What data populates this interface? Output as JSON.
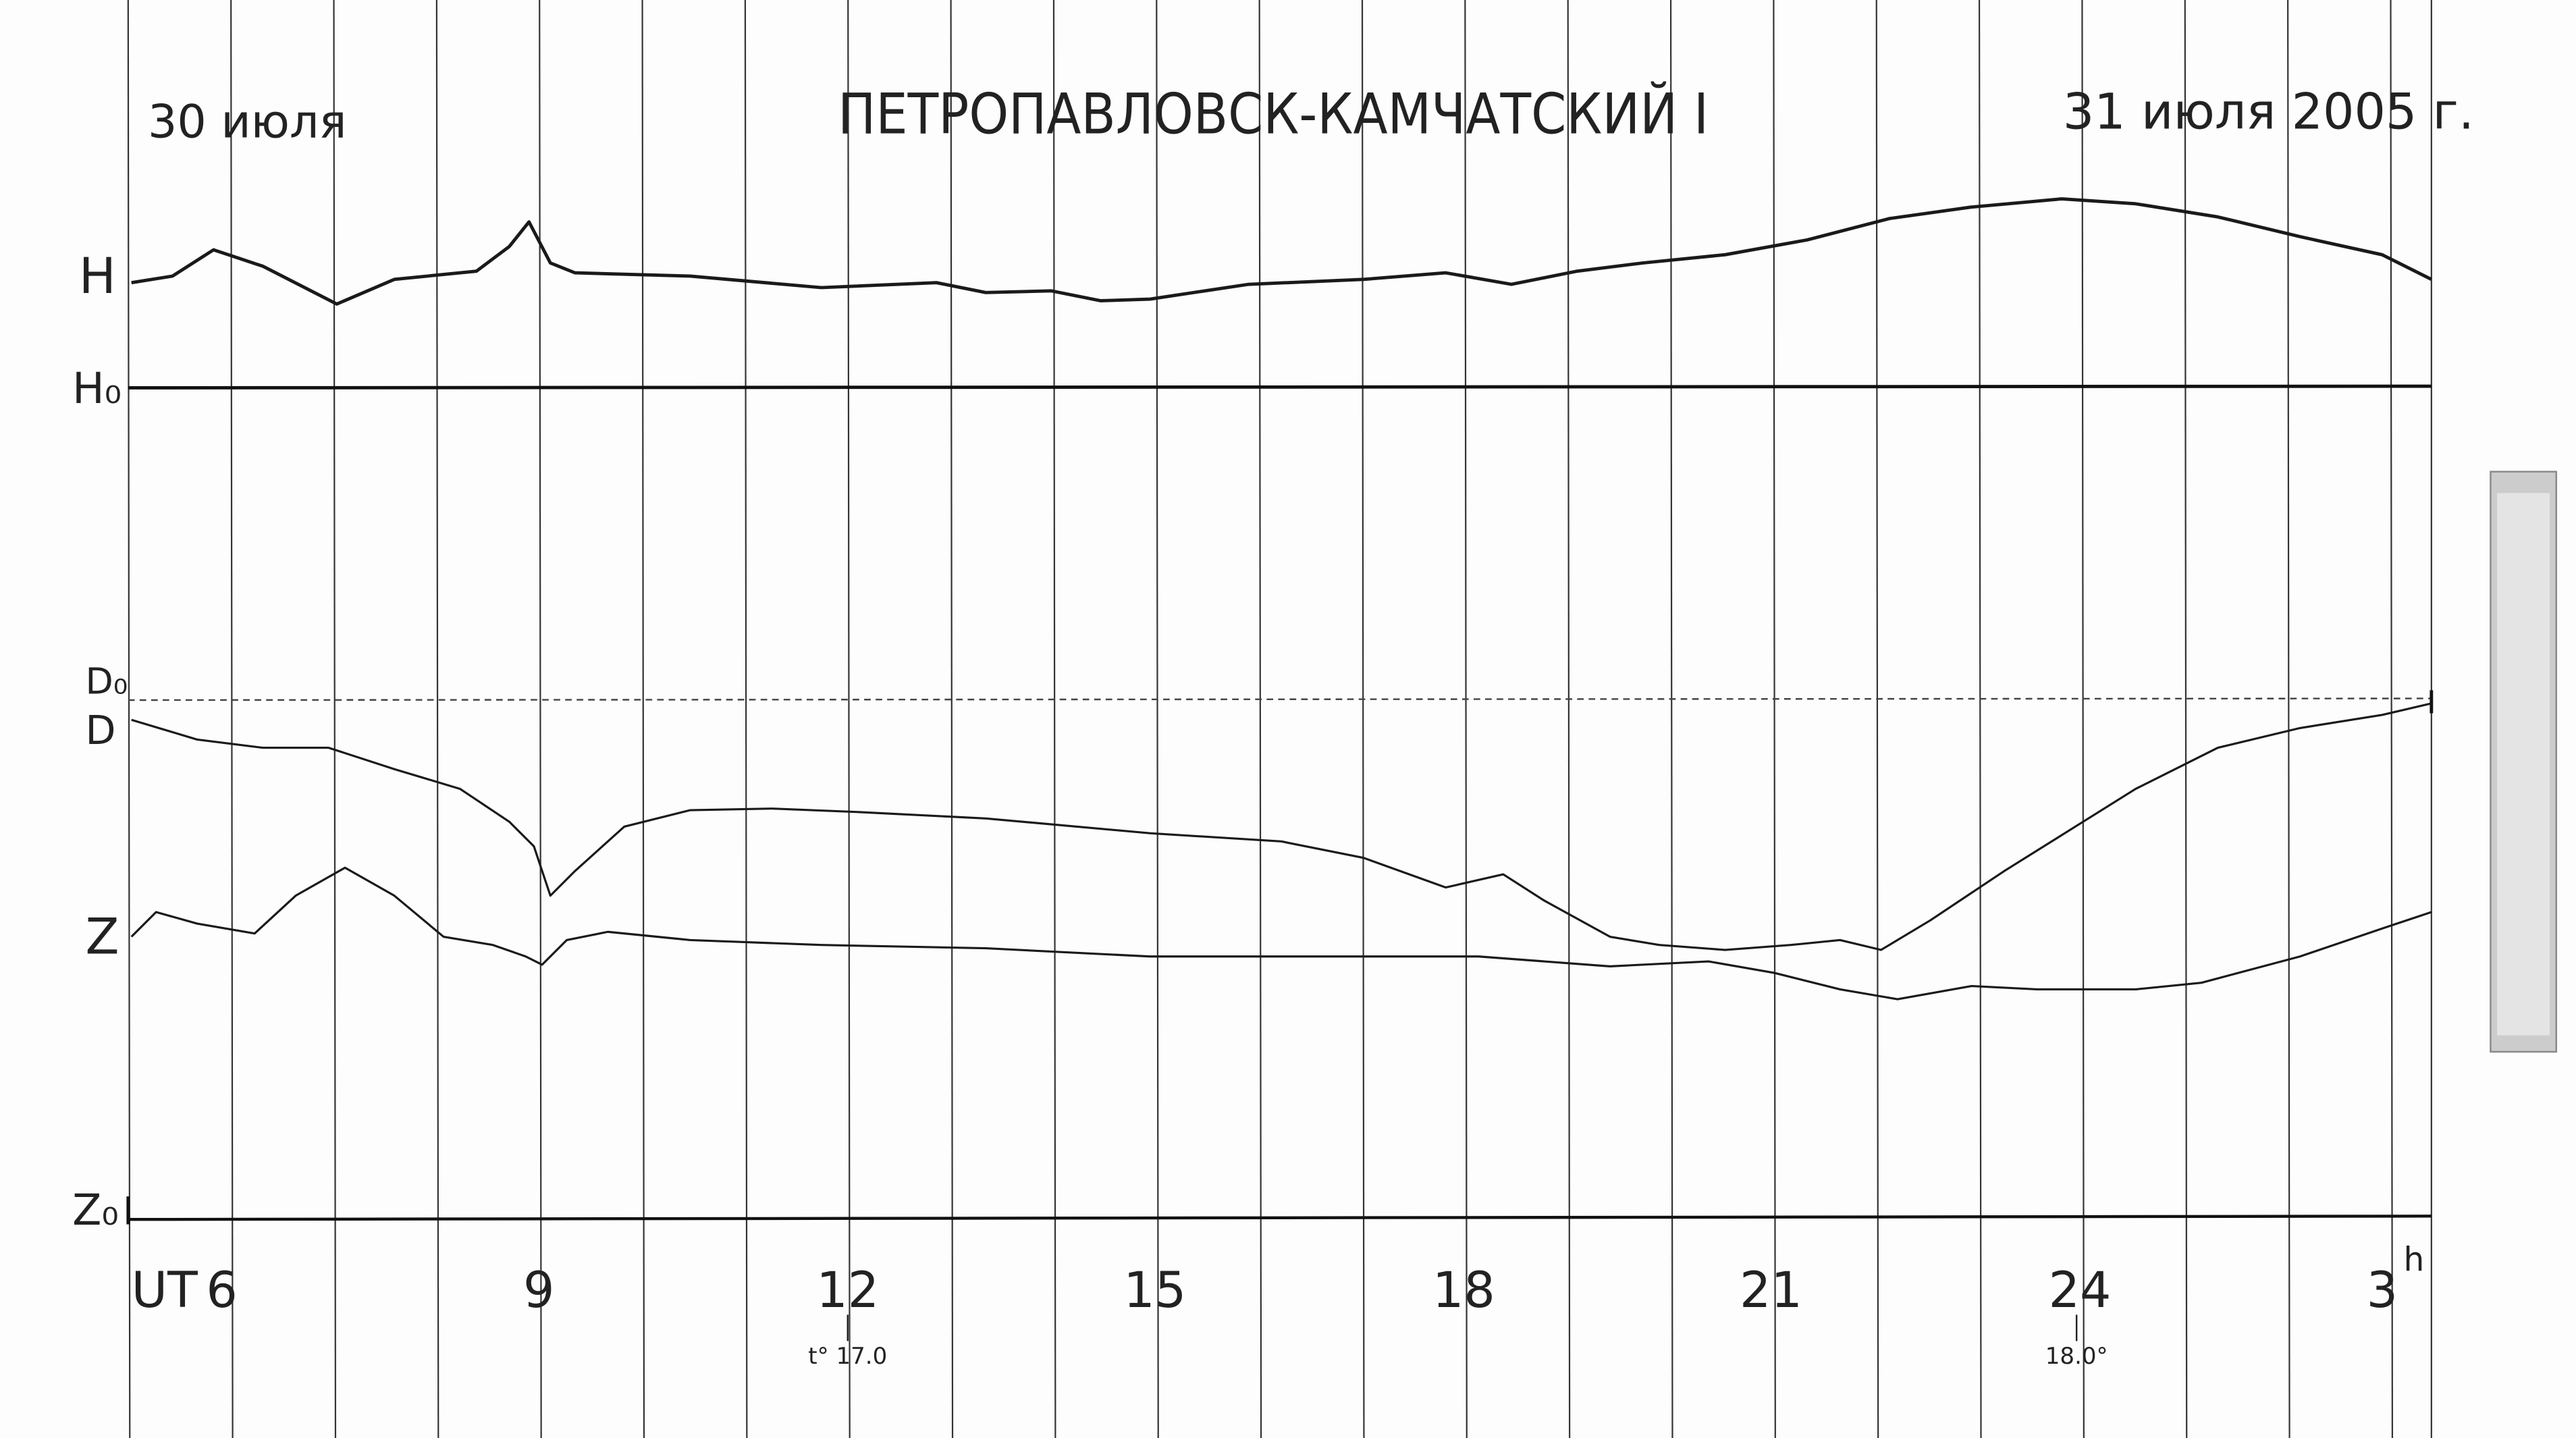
{
  "header": {
    "left_date": "30 июля",
    "title": "ПЕТРОПАВЛОВСК-КАМЧАТСКИЙ I",
    "right_date": "31 июля 2005 г."
  },
  "labels": {
    "h": "H",
    "h0": "H₀",
    "d0": "D₀",
    "d": "D",
    "z": "Z",
    "z0": "Z₀"
  },
  "axis": {
    "prefix": "UT",
    "hours": [
      "6",
      "9",
      "12",
      "15",
      "18",
      "21",
      "24",
      "3"
    ],
    "unit": "h"
  },
  "temperatures": [
    "t° 17.0",
    "18.0°"
  ]
}
